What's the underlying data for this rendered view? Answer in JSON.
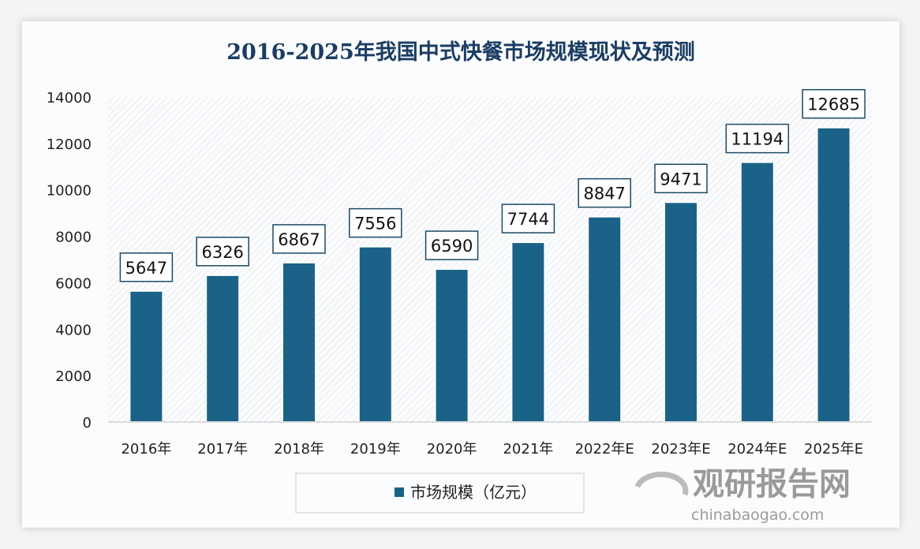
{
  "chart_data": {
    "type": "bar",
    "title": "2016-2025年我国中式快餐市场规模现状及预测",
    "categories": [
      "2016年",
      "2017年",
      "2018年",
      "2019年",
      "2020年",
      "2021年",
      "2022年E",
      "2023年E",
      "2024年E",
      "2025年E"
    ],
    "series": [
      {
        "name": "市场规模（亿元）",
        "values": [
          5647,
          6326,
          6867,
          7556,
          6590,
          7744,
          8847,
          9471,
          11194,
          12685
        ]
      }
    ],
    "yticks": [
      "0",
      "2000",
      "4000",
      "6000",
      "8000",
      "10000",
      "12000",
      "14000"
    ],
    "ylim": [
      0,
      14000
    ],
    "xlabel": "",
    "ylabel": "",
    "legend_position": "bottom",
    "bar_color": "#1a6287",
    "data_labels": true
  },
  "watermark": {
    "name": "观研报告网",
    "url": "chinabaogao.com"
  }
}
